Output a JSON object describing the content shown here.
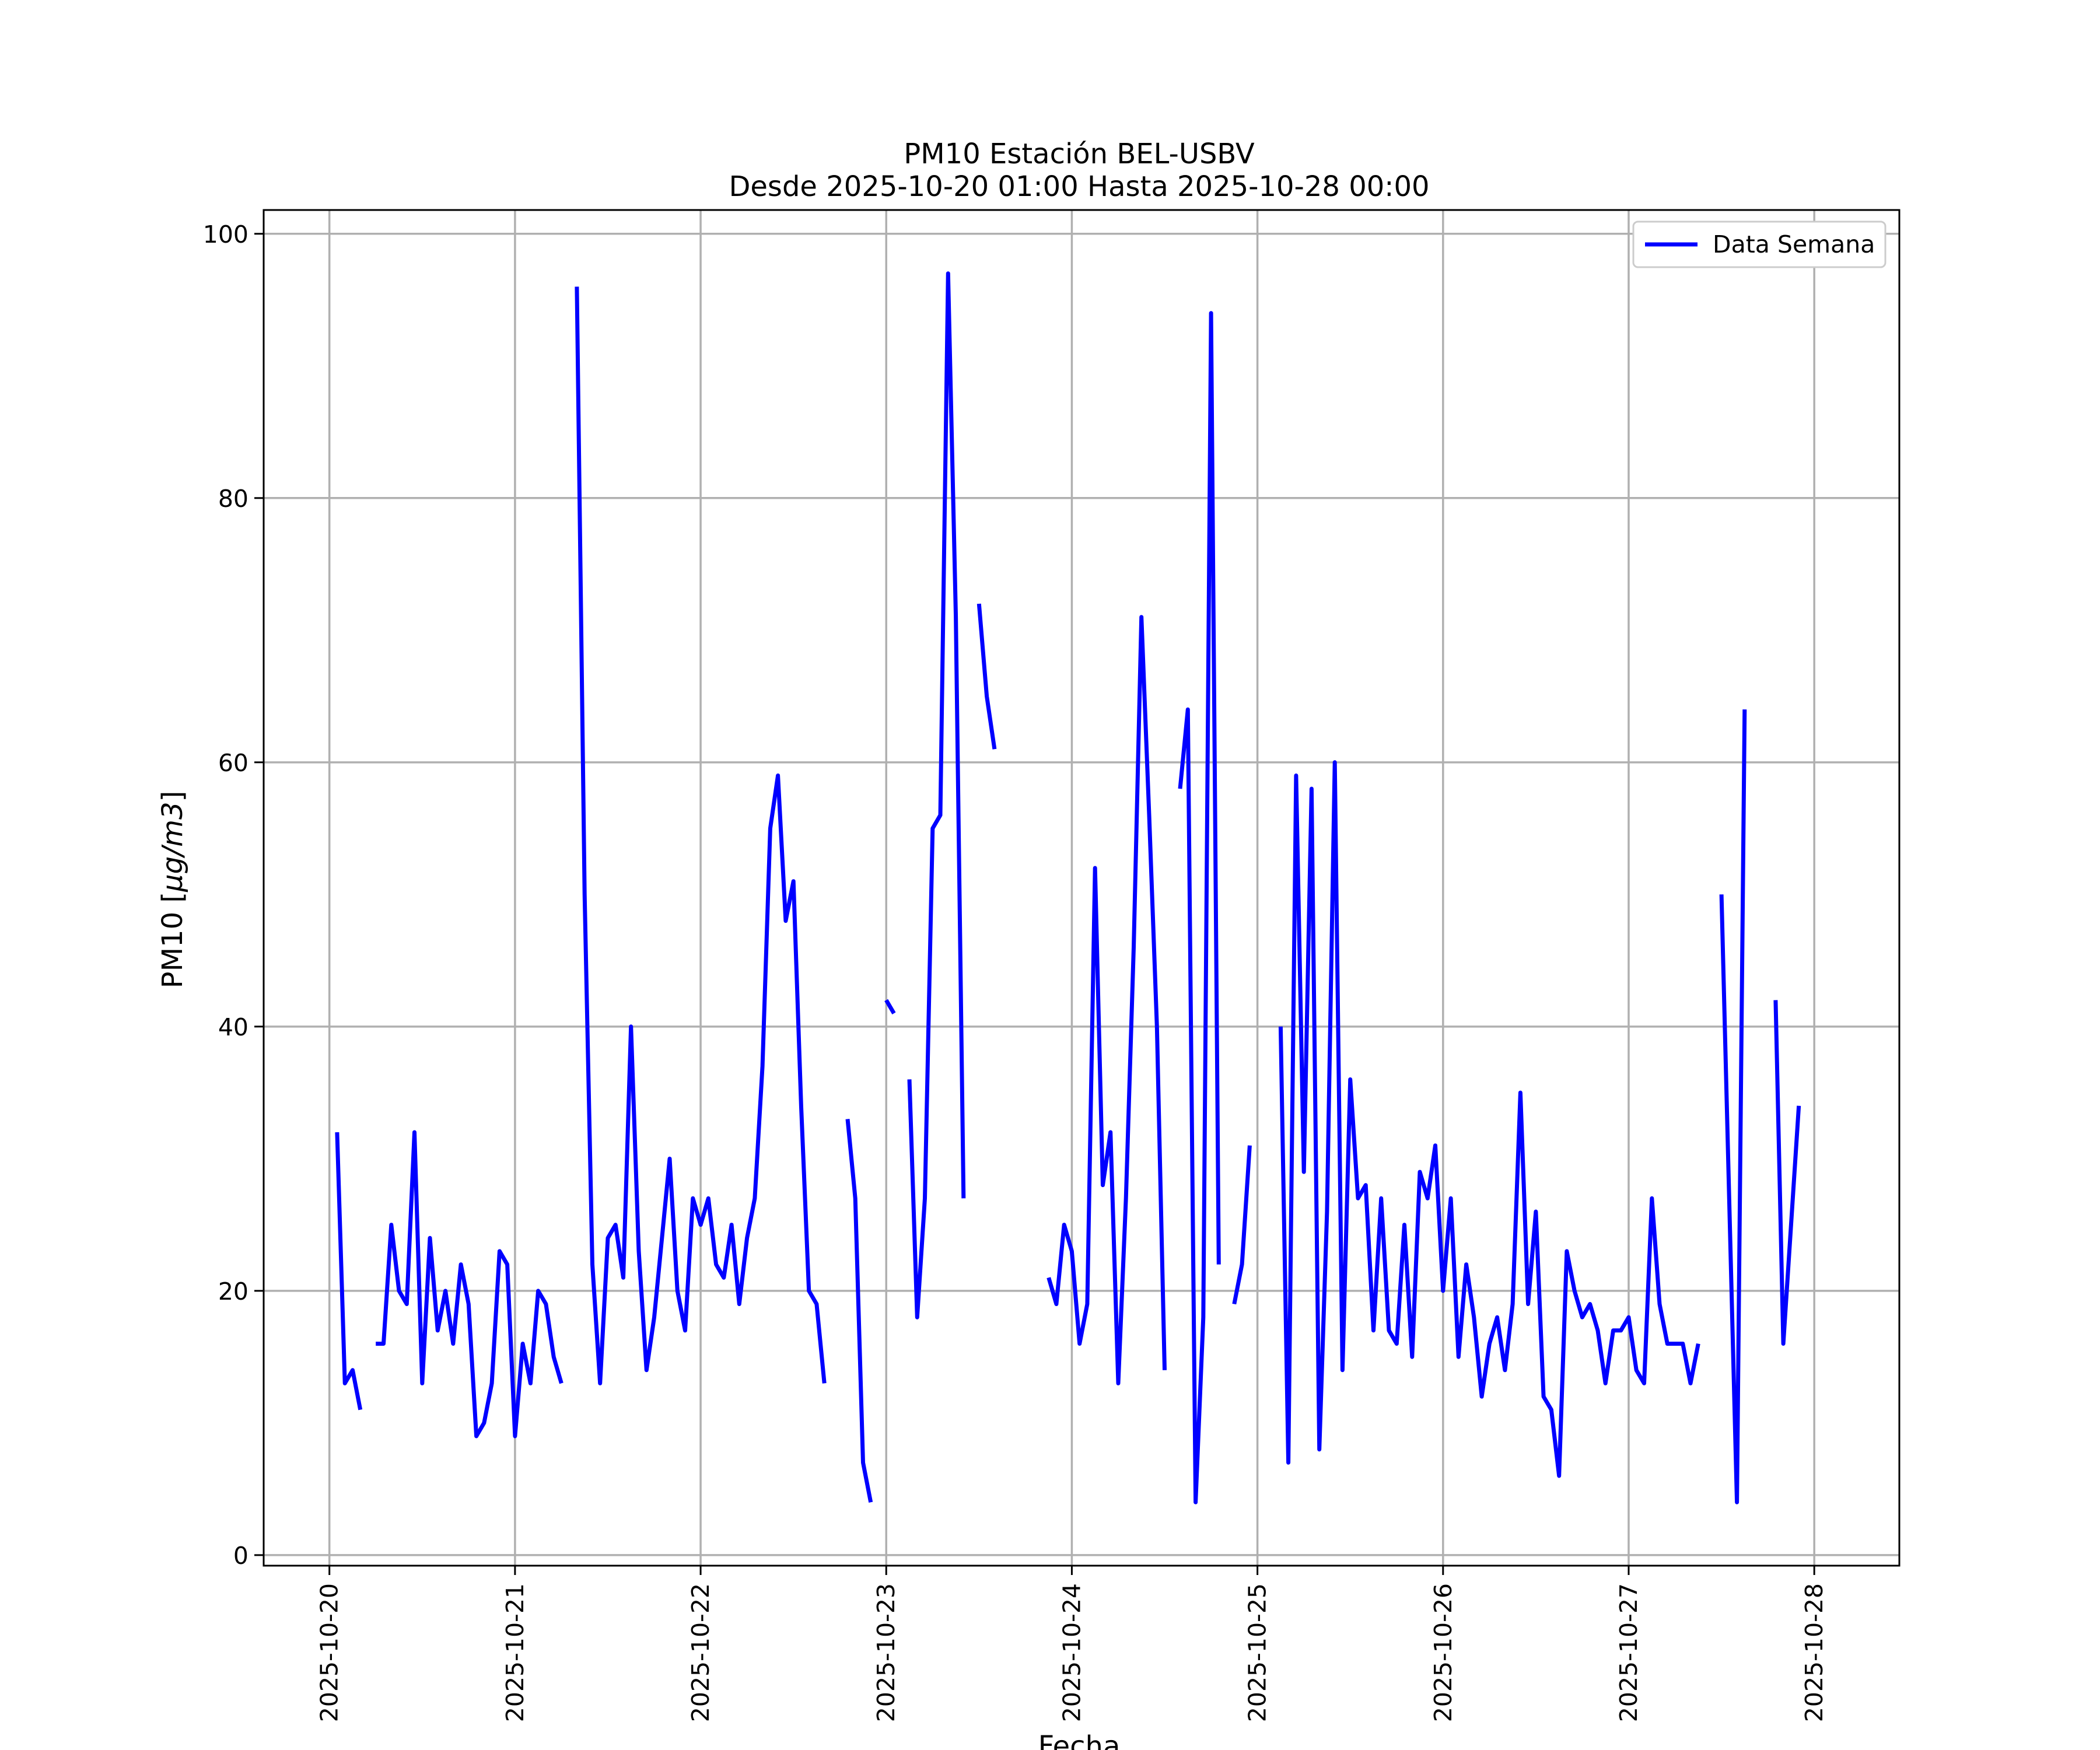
{
  "chart_data": {
    "type": "line",
    "title": "PM10 Estación BEL-USBV",
    "subtitle": "Desde 2025-10-20 01:00 Hasta 2025-10-28 00:00",
    "xlabel": "Fecha",
    "ylabel_prefix": "PM10 [",
    "ylabel_unit": "μg/m3",
    "ylabel_suffix": "]",
    "x_start": "2025-10-20 00:00",
    "x_tick_labels": [
      "2025-10-20",
      "2025-10-21",
      "2025-10-22",
      "2025-10-23",
      "2025-10-24",
      "2025-10-25",
      "2025-10-26",
      "2025-10-27",
      "2025-10-28"
    ],
    "y_ticks": [
      0,
      20,
      40,
      60,
      80,
      100
    ],
    "xlim": [
      "2025-10-19 15:30",
      "2025-10-28 11:00"
    ],
    "ylim": [
      -0.8,
      101.8
    ],
    "grid": true,
    "legend_position": "top-right",
    "line_color": "#0000ff",
    "series": [
      {
        "name": "Data Semana",
        "segments": [
          [
            [
              "2025-10-20 01:00",
              32
            ],
            [
              "2025-10-20 02:00",
              13
            ],
            [
              "2025-10-20 03:00",
              14
            ],
            [
              "2025-10-20 04:00",
              11
            ]
          ],
          [
            [
              "2025-10-20 06:00",
              16
            ],
            [
              "2025-10-20 07:00",
              16
            ],
            [
              "2025-10-20 08:00",
              25
            ],
            [
              "2025-10-20 09:00",
              20
            ],
            [
              "2025-10-20 10:00",
              19
            ],
            [
              "2025-10-20 11:00",
              32
            ],
            [
              "2025-10-20 12:00",
              13
            ],
            [
              "2025-10-20 13:00",
              24
            ],
            [
              "2025-10-20 14:00",
              17
            ],
            [
              "2025-10-20 15:00",
              20
            ],
            [
              "2025-10-20 16:00",
              16
            ],
            [
              "2025-10-20 17:00",
              22
            ],
            [
              "2025-10-20 18:00",
              19
            ],
            [
              "2025-10-20 19:00",
              9
            ],
            [
              "2025-10-20 20:00",
              10
            ],
            [
              "2025-10-20 21:00",
              13
            ],
            [
              "2025-10-20 22:00",
              23
            ],
            [
              "2025-10-20 23:00",
              22
            ],
            [
              "2025-10-21 00:00",
              9
            ],
            [
              "2025-10-21 01:00",
              16
            ],
            [
              "2025-10-21 02:00",
              13
            ],
            [
              "2025-10-21 03:00",
              20
            ],
            [
              "2025-10-21 04:00",
              19
            ],
            [
              "2025-10-21 05:00",
              15
            ],
            [
              "2025-10-21 06:00",
              13
            ]
          ],
          [
            [
              "2025-10-21 08:00",
              96
            ],
            [
              "2025-10-21 09:00",
              50
            ],
            [
              "2025-10-21 10:00",
              22
            ],
            [
              "2025-10-21 11:00",
              13
            ],
            [
              "2025-10-21 12:00",
              24
            ],
            [
              "2025-10-21 13:00",
              25
            ],
            [
              "2025-10-21 14:00",
              21
            ],
            [
              "2025-10-21 15:00",
              40
            ],
            [
              "2025-10-21 16:00",
              23
            ],
            [
              "2025-10-21 17:00",
              14
            ],
            [
              "2025-10-21 18:00",
              18
            ],
            [
              "2025-10-21 19:00",
              24
            ],
            [
              "2025-10-21 20:00",
              30
            ],
            [
              "2025-10-21 21:00",
              20
            ],
            [
              "2025-10-21 22:00",
              17
            ],
            [
              "2025-10-21 23:00",
              27
            ],
            [
              "2025-10-22 00:00",
              25
            ],
            [
              "2025-10-22 01:00",
              27
            ],
            [
              "2025-10-22 02:00",
              22
            ],
            [
              "2025-10-22 03:00",
              21
            ],
            [
              "2025-10-22 04:00",
              25
            ],
            [
              "2025-10-22 05:00",
              19
            ],
            [
              "2025-10-22 06:00",
              24
            ],
            [
              "2025-10-22 07:00",
              27
            ],
            [
              "2025-10-22 08:00",
              37
            ],
            [
              "2025-10-22 09:00",
              55
            ],
            [
              "2025-10-22 10:00",
              59
            ],
            [
              "2025-10-22 11:00",
              48
            ],
            [
              "2025-10-22 12:00",
              51
            ],
            [
              "2025-10-22 13:00",
              34
            ],
            [
              "2025-10-22 14:00",
              20
            ],
            [
              "2025-10-22 15:00",
              19
            ],
            [
              "2025-10-22 16:00",
              13
            ]
          ],
          [
            [
              "2025-10-22 19:00",
              33
            ],
            [
              "2025-10-22 20:00",
              27
            ],
            [
              "2025-10-22 21:00",
              7
            ],
            [
              "2025-10-22 22:00",
              4
            ]
          ],
          [
            [
              "2025-10-23 00:00",
              42
            ],
            [
              "2025-10-23 01:00",
              41
            ]
          ],
          [
            [
              "2025-10-23 03:00",
              36
            ],
            [
              "2025-10-23 04:00",
              18
            ],
            [
              "2025-10-23 05:00",
              27
            ],
            [
              "2025-10-23 06:00",
              55
            ],
            [
              "2025-10-23 07:00",
              56
            ],
            [
              "2025-10-23 08:00",
              97
            ],
            [
              "2025-10-23 09:00",
              71
            ],
            [
              "2025-10-23 10:00",
              27
            ]
          ],
          [
            [
              "2025-10-23 12:00",
              72
            ],
            [
              "2025-10-23 13:00",
              65
            ],
            [
              "2025-10-23 14:00",
              61
            ]
          ],
          [
            [
              "2025-10-23 21:00",
              21
            ],
            [
              "2025-10-23 22:00",
              19
            ],
            [
              "2025-10-23 23:00",
              25
            ],
            [
              "2025-10-24 00:00",
              23
            ],
            [
              "2025-10-24 01:00",
              16
            ],
            [
              "2025-10-24 02:00",
              19
            ],
            [
              "2025-10-24 03:00",
              52
            ],
            [
              "2025-10-24 04:00",
              28
            ],
            [
              "2025-10-24 05:00",
              32
            ],
            [
              "2025-10-24 06:00",
              13
            ],
            [
              "2025-10-24 07:00",
              27
            ],
            [
              "2025-10-24 08:00",
              46
            ],
            [
              "2025-10-24 09:00",
              71
            ],
            [
              "2025-10-24 10:00",
              56
            ],
            [
              "2025-10-24 11:00",
              40
            ],
            [
              "2025-10-24 12:00",
              14
            ]
          ],
          [
            [
              "2025-10-24 14:00",
              58
            ],
            [
              "2025-10-24 15:00",
              64
            ],
            [
              "2025-10-24 16:00",
              4
            ],
            [
              "2025-10-24 17:00",
              18
            ],
            [
              "2025-10-24 18:00",
              94
            ],
            [
              "2025-10-24 19:00",
              22
            ]
          ],
          [
            [
              "2025-10-24 21:00",
              19
            ],
            [
              "2025-10-24 22:00",
              22
            ],
            [
              "2025-10-24 23:00",
              31
            ]
          ],
          [
            [
              "2025-10-25 03:00",
              40
            ],
            [
              "2025-10-25 04:00",
              7
            ],
            [
              "2025-10-25 05:00",
              59
            ],
            [
              "2025-10-25 06:00",
              29
            ],
            [
              "2025-10-25 07:00",
              58
            ],
            [
              "2025-10-25 08:00",
              8
            ],
            [
              "2025-10-25 09:00",
              26
            ],
            [
              "2025-10-25 10:00",
              60
            ],
            [
              "2025-10-25 11:00",
              14
            ],
            [
              "2025-10-25 12:00",
              36
            ],
            [
              "2025-10-25 13:00",
              27
            ],
            [
              "2025-10-25 14:00",
              28
            ],
            [
              "2025-10-25 15:00",
              17
            ],
            [
              "2025-10-25 16:00",
              27
            ],
            [
              "2025-10-25 17:00",
              17
            ],
            [
              "2025-10-25 18:00",
              16
            ],
            [
              "2025-10-25 19:00",
              25
            ],
            [
              "2025-10-25 20:00",
              15
            ],
            [
              "2025-10-25 21:00",
              29
            ],
            [
              "2025-10-25 22:00",
              27
            ],
            [
              "2025-10-25 23:00",
              31
            ],
            [
              "2025-10-26 00:00",
              20
            ],
            [
              "2025-10-26 01:00",
              27
            ],
            [
              "2025-10-26 02:00",
              15
            ],
            [
              "2025-10-26 03:00",
              22
            ],
            [
              "2025-10-26 04:00",
              18
            ],
            [
              "2025-10-26 05:00",
              12
            ],
            [
              "2025-10-26 06:00",
              16
            ],
            [
              "2025-10-26 07:00",
              18
            ],
            [
              "2025-10-26 08:00",
              14
            ],
            [
              "2025-10-26 09:00",
              19
            ],
            [
              "2025-10-26 10:00",
              35
            ],
            [
              "2025-10-26 11:00",
              19
            ],
            [
              "2025-10-26 12:00",
              26
            ],
            [
              "2025-10-26 13:00",
              12
            ],
            [
              "2025-10-26 14:00",
              11
            ],
            [
              "2025-10-26 15:00",
              6
            ],
            [
              "2025-10-26 16:00",
              23
            ],
            [
              "2025-10-26 17:00",
              20
            ],
            [
              "2025-10-26 18:00",
              18
            ],
            [
              "2025-10-26 19:00",
              19
            ],
            [
              "2025-10-26 20:00",
              17
            ],
            [
              "2025-10-26 21:00",
              13
            ],
            [
              "2025-10-26 22:00",
              17
            ],
            [
              "2025-10-26 23:00",
              17
            ],
            [
              "2025-10-27 00:00",
              18
            ],
            [
              "2025-10-27 01:00",
              14
            ],
            [
              "2025-10-27 02:00",
              13
            ],
            [
              "2025-10-27 03:00",
              27
            ],
            [
              "2025-10-27 04:00",
              19
            ],
            [
              "2025-10-27 05:00",
              16
            ],
            [
              "2025-10-27 06:00",
              16
            ],
            [
              "2025-10-27 07:00",
              16
            ],
            [
              "2025-10-27 08:00",
              13
            ],
            [
              "2025-10-27 09:00",
              16
            ]
          ],
          [
            [
              "2025-10-27 12:00",
              50
            ],
            [
              "2025-10-27 13:00",
              27
            ],
            [
              "2025-10-27 14:00",
              4
            ],
            [
              "2025-10-27 15:00",
              64
            ]
          ],
          [
            [
              "2025-10-27 19:00",
              42
            ],
            [
              "2025-10-27 20:00",
              16
            ],
            [
              "2025-10-27 21:00",
              25
            ],
            [
              "2025-10-27 22:00",
              34
            ]
          ]
        ]
      }
    ]
  }
}
